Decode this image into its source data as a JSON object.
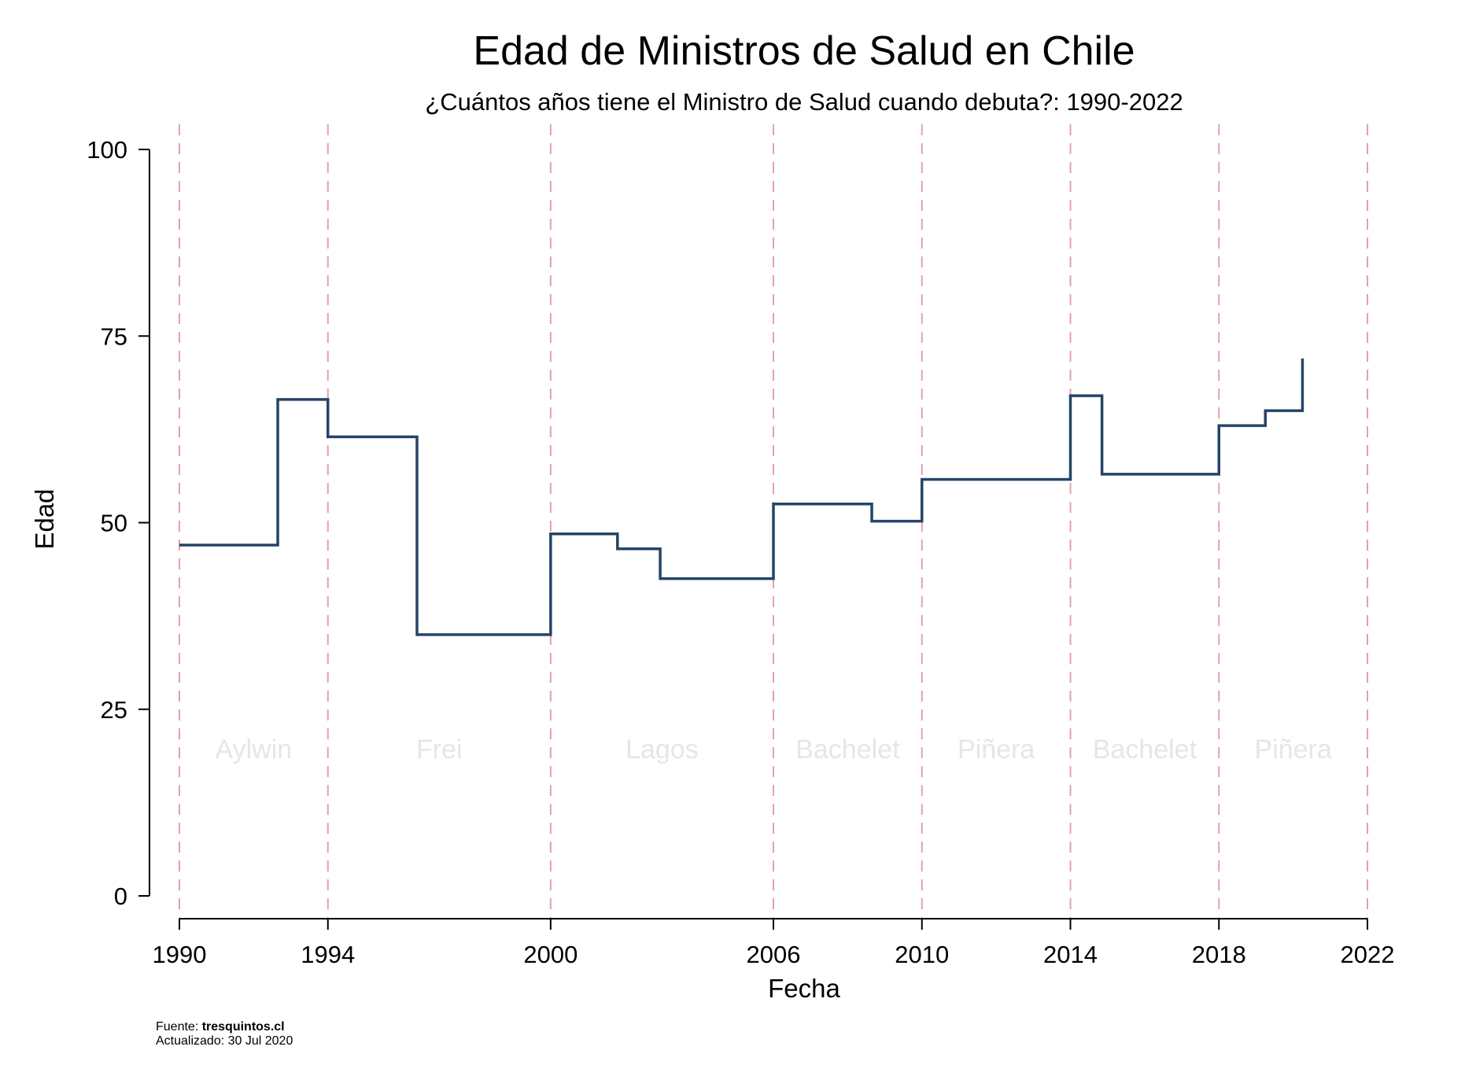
{
  "chart_data": {
    "type": "line",
    "step": true,
    "title": "Edad de Ministros de Salud en Chile",
    "subtitle": "¿Cuántos años tiene el Ministro de Salud cuando debuta?: 1990-2022",
    "xlabel": "Fecha",
    "ylabel": "Edad",
    "xlim": [
      1990,
      2022
    ],
    "ylim": [
      0,
      100
    ],
    "x_ticks": [
      1990,
      1994,
      2000,
      2006,
      2010,
      2014,
      2018,
      2022
    ],
    "y_ticks": [
      0,
      25,
      50,
      75,
      100
    ],
    "grid": false,
    "reference_lines": [
      1990,
      1994,
      2000,
      2006,
      2010,
      2014,
      2018,
      2022
    ],
    "reference_line_color": "#e3a1ad",
    "line_color": "#264468",
    "eras": [
      {
        "label": "Aylwin",
        "x": 1992
      },
      {
        "label": "Frei",
        "x": 1997
      },
      {
        "label": "Lagos",
        "x": 2003
      },
      {
        "label": "Bachelet",
        "x": 2008
      },
      {
        "label": "Piñera",
        "x": 2012
      },
      {
        "label": "Bachelet",
        "x": 2016
      },
      {
        "label": "Piñera",
        "x": 2020
      }
    ],
    "series": [
      {
        "x": [
          1990.0,
          1992.65,
          1994.0,
          1996.4,
          2000.0,
          2001.8,
          2002.95,
          2006.0,
          2008.65,
          2010.0,
          2014.0,
          2014.85,
          2018.0,
          2019.25,
          2020.25,
          2020.25
        ],
        "y": [
          47,
          66.5,
          61.5,
          35,
          48.5,
          46.5,
          42.5,
          52.5,
          50.2,
          55.8,
          67,
          56.5,
          63,
          65,
          65,
          72
        ]
      }
    ]
  },
  "footer": {
    "source_prefix": "Fuente: ",
    "source_value": "tresquintos.cl",
    "updated": "Actualizado: 30 Jul 2020"
  }
}
